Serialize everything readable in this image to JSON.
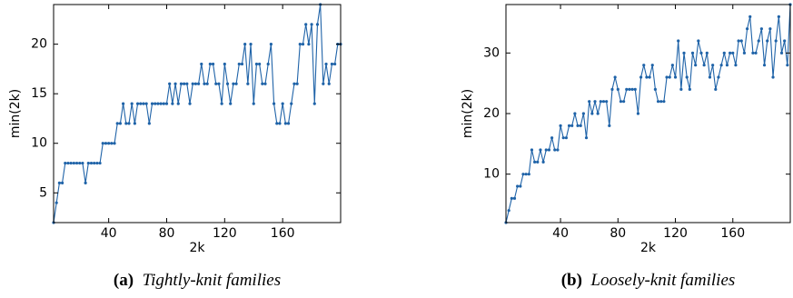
{
  "chart_data": [
    {
      "type": "line",
      "caption_label": "(a)",
      "caption": "Tightly-knit families",
      "xlabel": "2k",
      "ylabel": "min(2k)",
      "color": "#1f63a8",
      "xlim": [
        2,
        200
      ],
      "ylim": [
        2,
        24
      ],
      "xticks": [
        40,
        80,
        120,
        160
      ],
      "yticks": [
        5,
        10,
        15,
        20
      ],
      "x": [
        2,
        4,
        6,
        8,
        10,
        12,
        14,
        16,
        18,
        20,
        22,
        24,
        26,
        28,
        30,
        32,
        34,
        36,
        38,
        40,
        42,
        44,
        46,
        48,
        50,
        52,
        54,
        56,
        58,
        60,
        62,
        64,
        66,
        68,
        70,
        72,
        74,
        76,
        78,
        80,
        82,
        84,
        86,
        88,
        90,
        92,
        94,
        96,
        98,
        100,
        102,
        104,
        106,
        108,
        110,
        112,
        114,
        116,
        118,
        120,
        122,
        124,
        126,
        128,
        130,
        132,
        134,
        136,
        138,
        140,
        142,
        144,
        146,
        148,
        150,
        152,
        154,
        156,
        158,
        160,
        162,
        164,
        166,
        168,
        170,
        172,
        174,
        176,
        178,
        180,
        182,
        184,
        186,
        188,
        190,
        192,
        194,
        196,
        198,
        200
      ],
      "values": [
        2,
        4,
        6,
        6,
        8,
        8,
        8,
        8,
        8,
        8,
        8,
        6,
        8,
        8,
        8,
        8,
        8,
        10,
        10,
        10,
        10,
        10,
        12,
        12,
        14,
        12,
        12,
        14,
        12,
        14,
        14,
        14,
        14,
        12,
        14,
        14,
        14,
        14,
        14,
        14,
        16,
        14,
        16,
        14,
        16,
        16,
        16,
        14,
        16,
        16,
        16,
        18,
        16,
        16,
        18,
        18,
        16,
        16,
        14,
        18,
        16,
        14,
        16,
        16,
        18,
        18,
        20,
        16,
        20,
        14,
        18,
        18,
        16,
        16,
        18,
        20,
        14,
        12,
        12,
        14,
        12,
        12,
        14,
        16,
        16,
        20,
        20,
        22,
        20,
        22,
        14,
        22,
        24,
        16,
        18,
        16,
        18,
        18,
        20,
        20
      ]
    },
    {
      "type": "line",
      "caption_label": "(b)",
      "caption": "Loosely-knit families",
      "xlabel": "2k",
      "ylabel": "min(2k)",
      "color": "#1f63a8",
      "xlim": [
        2,
        200
      ],
      "ylim": [
        2,
        38
      ],
      "xticks": [
        40,
        80,
        120,
        160
      ],
      "yticks": [
        10,
        20,
        30
      ],
      "x": [
        2,
        4,
        6,
        8,
        10,
        12,
        14,
        16,
        18,
        20,
        22,
        24,
        26,
        28,
        30,
        32,
        34,
        36,
        38,
        40,
        42,
        44,
        46,
        48,
        50,
        52,
        54,
        56,
        58,
        60,
        62,
        64,
        66,
        68,
        70,
        72,
        74,
        76,
        78,
        80,
        82,
        84,
        86,
        88,
        90,
        92,
        94,
        96,
        98,
        100,
        102,
        104,
        106,
        108,
        110,
        112,
        114,
        116,
        118,
        120,
        122,
        124,
        126,
        128,
        130,
        132,
        134,
        136,
        138,
        140,
        142,
        144,
        146,
        148,
        150,
        152,
        154,
        156,
        158,
        160,
        162,
        164,
        166,
        168,
        170,
        172,
        174,
        176,
        178,
        180,
        182,
        184,
        186,
        188,
        190,
        192,
        194,
        196,
        198,
        200
      ],
      "values": [
        2,
        4,
        6,
        6,
        8,
        8,
        10,
        10,
        10,
        14,
        12,
        12,
        14,
        12,
        14,
        14,
        16,
        14,
        14,
        18,
        16,
        16,
        18,
        18,
        20,
        18,
        18,
        20,
        16,
        22,
        20,
        22,
        20,
        22,
        22,
        22,
        18,
        24,
        26,
        24,
        22,
        22,
        24,
        24,
        24,
        24,
        20,
        26,
        28,
        26,
        26,
        28,
        24,
        22,
        22,
        22,
        26,
        26,
        28,
        26,
        32,
        24,
        30,
        26,
        24,
        30,
        28,
        32,
        30,
        28,
        30,
        26,
        28,
        24,
        26,
        28,
        30,
        28,
        30,
        30,
        28,
        32,
        32,
        30,
        34,
        36,
        30,
        30,
        32,
        34,
        28,
        32,
        34,
        26,
        32,
        36,
        30,
        32,
        28,
        38
      ]
    }
  ]
}
